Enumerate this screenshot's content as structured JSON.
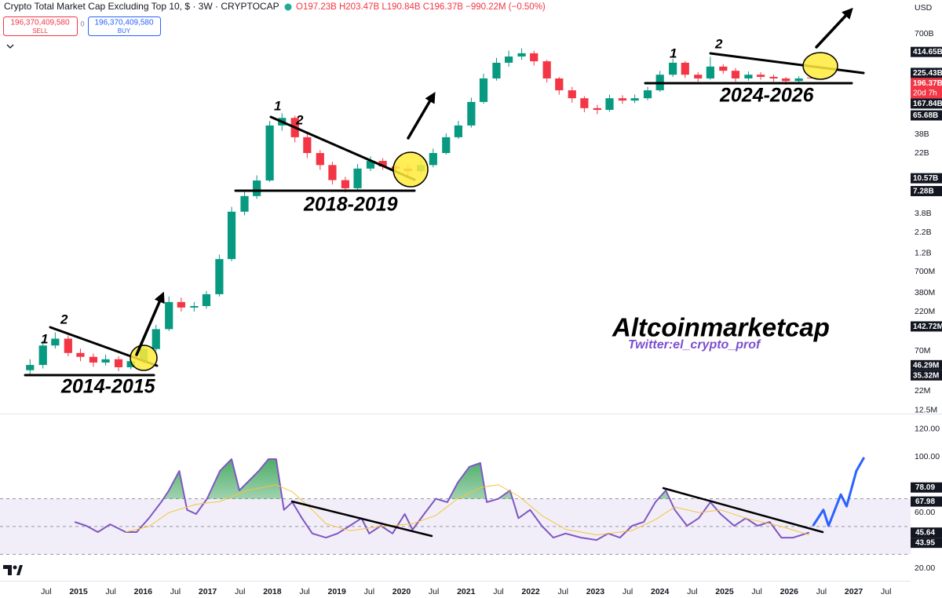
{
  "header": {
    "title": "Crypto Total Market Cap Excluding Top 10, $ · 3W · CRYPTOCAP",
    "ohlc": "O197.23B H203.47B L190.84B C196.37B −990.22M (−0.50%)",
    "sell_price": "196,370,409,580",
    "sell_label": "SELL",
    "spread": "0",
    "buy_price": "196,370,409,580",
    "buy_label": "BUY",
    "currency": "USD"
  },
  "chart_data": [
    {
      "type": "candlestick",
      "log_scale": true,
      "up_color": "#089981",
      "down_color": "#f23645",
      "x": [
        2014.25,
        2014.45,
        2014.64,
        2014.84,
        2015.03,
        2015.23,
        2015.42,
        2015.62,
        2015.81,
        2016.01,
        2016.2,
        2016.4,
        2016.59,
        2016.79,
        2016.98,
        2017.18,
        2017.37,
        2017.57,
        2017.76,
        2017.96,
        2018.15,
        2018.35,
        2018.54,
        2018.74,
        2018.93,
        2019.13,
        2019.32,
        2019.52,
        2019.71,
        2019.91,
        2020.1,
        2020.3,
        2020.49,
        2020.69,
        2020.88,
        2021.08,
        2021.27,
        2021.47,
        2021.66,
        2021.86,
        2022.05,
        2022.25,
        2022.44,
        2022.64,
        2022.83,
        2023.03,
        2023.22,
        2023.42,
        2023.61,
        2023.81,
        2024.0,
        2024.2,
        2024.39,
        2024.59,
        2024.78,
        2024.98,
        2025.17,
        2025.37,
        2025.56,
        2025.76,
        2025.95,
        2026.15,
        2026.34
      ],
      "open": [
        40000000.0,
        46600000.0,
        82000000.0,
        100000000.0,
        66000000.0,
        59000000.0,
        50000000.0,
        55000000.0,
        43600000.0,
        52000000.0,
        74000000.0,
        132000000.0,
        290000000.0,
        247000000.0,
        258000000.0,
        364000000.0,
        1010000000.0,
        4000000000.0,
        6300000000.0,
        9900000000.0,
        49000000000.0,
        61000000000.0,
        34800000000.0,
        22000000000.0,
        15500000000.0,
        10000000000.0,
        7900000000.0,
        14000000000.0,
        17500000000.0,
        14900000000.0,
        14000000000.0,
        13000000000.0,
        15500000000.0,
        22000000000.0,
        34800000000.0,
        49000000000.0,
        97000000000.0,
        192000000000.0,
        303000000000.0,
        363000000000.0,
        399000000000.0,
        316000000000.0,
        192000000000.0,
        136000000000.0,
        108000000000.0,
        81000000000.0,
        77000000000.0,
        108000000000.0,
        101000000000.0,
        108000000000.0,
        136000000000.0,
        214000000000.0,
        303000000000.0,
        214000000000.0,
        192000000000.0,
        271000000000.0,
        240000000000.0,
        192000000000.0,
        214000000000.0,
        201000000000.0,
        192000000000.0,
        178000000000.0,
        197230000000.0
      ],
      "high": [
        55000000.0,
        95000000.0,
        120000000.0,
        110000000.0,
        75000000.0,
        65000000.0,
        63000000.0,
        60000000.0,
        58000000.0,
        83000000.0,
        150000000.0,
        340000000.0,
        330000000.0,
        290000000.0,
        400000000.0,
        1150000000.0,
        4600000000.0,
        7500000000.0,
        11500000000.0,
        56000000000.0,
        70000000000.0,
        65000000000.0,
        38000000000.0,
        24000000000.0,
        17000000000.0,
        11000000000.0,
        16000000000.0,
        20000000000.0,
        19000000000.0,
        16500000000.0,
        15500000000.0,
        18000000000.0,
        25000000000.0,
        39000000000.0,
        56000000000.0,
        110000000000.0,
        220000000000.0,
        350000000000.0,
        430000000000.0,
        460000000000.0,
        430000000000.0,
        330000000000.0,
        200000000000.0,
        150000000000.0,
        115000000000.0,
        89000000000.0,
        120000000000.0,
        118000000000.0,
        120000000000.0,
        150000000000.0,
        240000000000.0,
        340000000000.0,
        320000000000.0,
        230000000000.0,
        360000000000.0,
        290000000000.0,
        260000000000.0,
        235000000000.0,
        230000000000.0,
        215000000000.0,
        200000000000.0,
        205000000000.0,
        203470000000.0
      ],
      "low": [
        35000000.0,
        42000000.0,
        75000000.0,
        60000000.0,
        52000000.0,
        44000000.0,
        46000000.0,
        39000000.0,
        41000000.0,
        48000000.0,
        70000000.0,
        125000000.0,
        220000000.0,
        220000000.0,
        240000000.0,
        340000000.0,
        950000000.0,
        3600000000.0,
        5800000000.0,
        9500000000.0,
        42000000000.0,
        30000000000.0,
        19000000000.0,
        13500000000.0,
        8800000000.0,
        7000000000.0,
        7400000000.0,
        13000000000.0,
        13500000000.0,
        12500000000.0,
        11500000000.0,
        12000000000.0,
        14500000000.0,
        21000000000.0,
        33000000000.0,
        46000000000.0,
        92000000000.0,
        180000000000.0,
        270000000000.0,
        330000000000.0,
        280000000000.0,
        170000000000.0,
        120000000000.0,
        95000000000.0,
        72000000000.0,
        68000000000.0,
        73000000000.0,
        92000000000.0,
        94000000000.0,
        102000000000.0,
        130000000000.0,
        200000000000.0,
        195000000000.0,
        175000000000.0,
        185000000000.0,
        220000000000.0,
        175000000000.0,
        180000000000.0,
        185000000000.0,
        175000000000.0,
        160000000000.0,
        168000000000.0,
        190840000000.0
      ],
      "close": [
        46600000.0,
        82000000.0,
        100000000.0,
        66000000.0,
        59000000.0,
        50000000.0,
        55000000.0,
        43600000.0,
        52000000.0,
        74000000.0,
        132000000.0,
        290000000.0,
        247000000.0,
        258000000.0,
        364000000.0,
        1010000000.0,
        4000000000.0,
        6300000000.0,
        9900000000.0,
        49000000000.0,
        61000000000.0,
        34800000000.0,
        22000000000.0,
        15500000000.0,
        10000000000.0,
        7900000000.0,
        14000000000.0,
        17500000000.0,
        14900000000.0,
        14000000000.0,
        13000000000.0,
        15500000000.0,
        22000000000.0,
        34800000000.0,
        49000000000.0,
        97000000000.0,
        192000000000.0,
        303000000000.0,
        363000000000.0,
        399000000000.0,
        316000000000.0,
        192000000000.0,
        136000000000.0,
        108000000000.0,
        81000000000.0,
        77000000000.0,
        108000000000.0,
        101000000000.0,
        108000000000.0,
        136000000000.0,
        214000000000.0,
        303000000000.0,
        214000000000.0,
        192000000000.0,
        271000000000.0,
        240000000000.0,
        192000000000.0,
        214000000000.0,
        201000000000.0,
        192000000000.0,
        178000000000.0,
        192000000000.0,
        196370000000.0
      ],
      "xlim": [
        2013.785,
        2027.88
      ],
      "ylim": [
        11350000,
        1875000000000
      ],
      "yticks": [
        {
          "value": 700000000000.0,
          "label": "700B"
        },
        {
          "value": 38000000000.0,
          "label": "38B"
        },
        {
          "value": 22000000000.0,
          "label": "22B"
        },
        {
          "value": 3800000000.0,
          "label": "3.8B"
        },
        {
          "value": 2200000000.0,
          "label": "2.2B"
        },
        {
          "value": 1200000000.0,
          "label": "1.2B"
        },
        {
          "value": 700000000.0,
          "label": "700M"
        },
        {
          "value": 380000000.0,
          "label": "380M"
        },
        {
          "value": 220000000.0,
          "label": "220M"
        },
        {
          "value": 70000000.0,
          "label": "70M"
        },
        {
          "value": 22000000.0,
          "label": "22M"
        },
        {
          "value": 12500000.0,
          "label": "12.5M"
        }
      ],
      "price_labels": [
        {
          "value": 414650000000.0,
          "label": "414.65B"
        },
        {
          "value": 225430000000.0,
          "label": "225.43B"
        },
        {
          "value": 167840000000.0,
          "label": "167.84B"
        },
        {
          "value": 65680000000.0,
          "label": "65.68B"
        },
        {
          "value": 10570000000.0,
          "label": "10.57B"
        },
        {
          "value": 7280000000.0,
          "label": "7.28B"
        },
        {
          "value": 142720000.0,
          "label": "142.72M"
        },
        {
          "value": 46290000.0,
          "label": "46.29M"
        },
        {
          "value": 35320000.0,
          "label": "35.32M"
        }
      ],
      "last_price": {
        "value": 196370000000.0,
        "label": "196.37B"
      },
      "countdown": "20d 7h",
      "annotations": [
        "1",
        "2",
        "1",
        "2",
        "1",
        "2",
        "2014-2015",
        "2018-2019",
        "2024-2026",
        "Altcoinmarketcap",
        "Twitter:el_crypto_prof"
      ]
    },
    {
      "type": "line",
      "series": [
        {
          "color": "#7e57c2",
          "x": [
            2014.94,
            2015.12,
            2015.3,
            2015.49,
            2015.73,
            2015.9,
            2016.09,
            2016.28,
            2016.4,
            2016.56,
            2016.68,
            2016.82,
            2016.99,
            2017.19,
            2017.37,
            2017.49,
            2017.61,
            2017.79,
            2017.94,
            2018.06,
            2018.18,
            2018.31,
            2018.46,
            2018.62,
            2018.83,
            2019.01,
            2019.2,
            2019.38,
            2019.5,
            2019.68,
            2019.86,
            2020.05,
            2020.17,
            2020.35,
            2020.53,
            2020.71,
            2020.87,
            2021.05,
            2021.22,
            2021.32,
            2021.5,
            2021.68,
            2021.81,
            2021.99,
            2022.17,
            2022.35,
            2022.54,
            2022.78,
            2023.02,
            2023.2,
            2023.38,
            2023.57,
            2023.75,
            2023.93,
            2024.09,
            2024.23,
            2024.42,
            2024.6,
            2024.78,
            2024.94,
            2025.15,
            2025.33,
            2025.51,
            2025.7,
            2025.88,
            2026.06,
            2026.31
          ],
          "values": [
            53.3,
            50.5,
            46,
            51.6,
            46,
            46,
            56,
            67.5,
            76,
            90,
            62,
            59,
            70,
            90,
            98.5,
            76,
            81.6,
            90,
            98.5,
            98.5,
            62,
            67.5,
            56,
            45,
            42,
            45,
            50.5,
            56,
            45,
            50.5,
            45,
            59,
            47.7,
            59,
            70,
            67.5,
            81.6,
            93,
            95.7,
            67.5,
            70,
            76,
            56,
            62,
            50.5,
            42,
            45,
            42,
            40.3,
            45,
            42,
            50.5,
            53.3,
            67.5,
            76,
            62,
            50.5,
            56,
            67.5,
            59,
            50.5,
            56,
            50.5,
            53.3,
            42,
            42,
            45.64
          ]
        },
        {
          "color": "#f5c33b",
          "x": [
            2015.73,
            2016.09,
            2016.4,
            2016.82,
            2017.19,
            2017.61,
            2018.06,
            2018.31,
            2018.62,
            2018.83,
            2019.2,
            2019.68,
            2020.17,
            2020.53,
            2020.87,
            2021.22,
            2021.5,
            2021.81,
            2022.17,
            2022.54,
            2023.02,
            2023.57,
            2023.93,
            2024.23,
            2024.6,
            2024.94,
            2025.33,
            2025.88,
            2026.31
          ],
          "values": [
            46,
            50,
            60,
            66,
            68,
            76,
            80,
            75,
            62,
            52,
            47,
            50,
            52,
            58,
            70,
            78,
            80,
            72,
            58,
            48,
            44,
            47,
            55,
            64,
            60,
            62,
            56,
            50,
            43.95
          ]
        },
        {
          "color": "#2962ff",
          "x": [
            2026.37,
            2026.53,
            2026.61,
            2026.8,
            2026.89,
            2027.04,
            2027.16
          ],
          "values": [
            50.5,
            62,
            50.5,
            73,
            64.6,
            90,
            99.7
          ]
        }
      ],
      "levels": [
        70,
        50,
        30
      ],
      "overbought_color": "#4caf50",
      "axis_labels": [
        78.09,
        67.98,
        45.64,
        43.95
      ],
      "xlim": [
        2013.785,
        2027.88
      ],
      "ylim": [
        11,
        130.7
      ],
      "yticks": [
        {
          "value": 120,
          "label": "120.00"
        },
        {
          "value": 100,
          "label": "100.00"
        },
        {
          "value": 60,
          "label": "60.00"
        },
        {
          "value": 20,
          "label": "20.00"
        }
      ],
      "xticks": [
        {
          "value": 2014.5,
          "label": "Jul"
        },
        2015,
        {
          "value": 2015.5,
          "label": "Jul"
        },
        2016,
        {
          "value": 2016.5,
          "label": "Jul"
        },
        2017,
        {
          "value": 2017.5,
          "label": "Jul"
        },
        2018,
        {
          "value": 2018.5,
          "label": "Jul"
        },
        2019,
        {
          "value": 2019.5,
          "label": "Jul"
        },
        2020,
        {
          "value": 2020.5,
          "label": "Jul"
        },
        2021,
        {
          "value": 2021.5,
          "label": "Jul"
        },
        2022,
        {
          "value": 2022.5,
          "label": "Jul"
        },
        2023,
        {
          "value": 2023.5,
          "label": "Jul"
        },
        2024,
        {
          "value": 2024.5,
          "label": "Jul"
        },
        2025,
        {
          "value": 2025.5,
          "label": "Jul"
        },
        2026,
        {
          "value": 2026.5,
          "label": "Jul"
        },
        2027,
        {
          "value": 2027.5,
          "label": "Jul"
        }
      ]
    }
  ]
}
